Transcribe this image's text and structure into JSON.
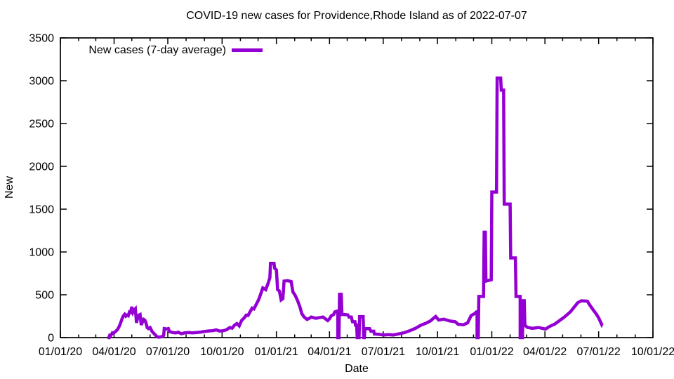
{
  "colors": {
    "line": "#9400d3",
    "axis": "#000000",
    "background": "#ffffff",
    "text": "#000000"
  },
  "chart_data": {
    "type": "line",
    "style": "step-like 7-day average curve",
    "title": "COVID-19 new cases for Providence,Rhode Island as of 2022-07-07",
    "xlabel": "Date",
    "ylabel": "New",
    "grid": "off",
    "legend": {
      "label": "New cases (7-day average)",
      "position": "top-left-inside",
      "sample_color": "#9400d3"
    },
    "x_axis": {
      "unit": "days since 2020-01-01",
      "range": [
        0,
        1004
      ],
      "major_ticks": [
        {
          "day": 0,
          "label": "01/01/20"
        },
        {
          "day": 91,
          "label": "04/01/20"
        },
        {
          "day": 182,
          "label": "07/01/20"
        },
        {
          "day": 274,
          "label": "10/01/20"
        },
        {
          "day": 366,
          "label": "01/01/21"
        },
        {
          "day": 456,
          "label": "04/01/21"
        },
        {
          "day": 547,
          "label": "07/01/21"
        },
        {
          "day": 639,
          "label": "10/01/21"
        },
        {
          "day": 731,
          "label": "01/01/22"
        },
        {
          "day": 821,
          "label": "04/01/22"
        },
        {
          "day": 912,
          "label": "07/01/22"
        },
        {
          "day": 1004,
          "label": "10/01/22"
        }
      ],
      "minor_tick_days": [
        31,
        60,
        121,
        152,
        213,
        244,
        305,
        335,
        397,
        425,
        486,
        517,
        578,
        609,
        670,
        700,
        762,
        790,
        851,
        882,
        943,
        974
      ]
    },
    "y_axis": {
      "range": [
        0,
        3500
      ],
      "tick_interval": 500,
      "tick_values": [
        0,
        500,
        1000,
        1500,
        2000,
        2500,
        3000,
        3500
      ]
    },
    "series": [
      {
        "name": "New cases (7-day average)",
        "color": "#9400d3",
        "points": [
          [
            80,
            2
          ],
          [
            82,
            0
          ],
          [
            83,
            18
          ],
          [
            84,
            10
          ],
          [
            86,
            30
          ],
          [
            88,
            55
          ],
          [
            90,
            50
          ],
          [
            92,
            62
          ],
          [
            94,
            75
          ],
          [
            97,
            95
          ],
          [
            100,
            135
          ],
          [
            103,
            190
          ],
          [
            105,
            230
          ],
          [
            107,
            255
          ],
          [
            109,
            272
          ],
          [
            111,
            250
          ],
          [
            113,
            262
          ],
          [
            115,
            255
          ],
          [
            117,
            300
          ],
          [
            119,
            295
          ],
          [
            121,
            360
          ],
          [
            123,
            295
          ],
          [
            125,
            320
          ],
          [
            127,
            335
          ],
          [
            129,
            172
          ],
          [
            131,
            230
          ],
          [
            133,
            262
          ],
          [
            135,
            270
          ],
          [
            137,
            147
          ],
          [
            139,
            180
          ],
          [
            141,
            213
          ],
          [
            143,
            205
          ],
          [
            145,
            172
          ],
          [
            147,
            117
          ],
          [
            149,
            106
          ],
          [
            152,
            117
          ],
          [
            155,
            75
          ],
          [
            158,
            52
          ],
          [
            161,
            30
          ],
          [
            164,
            8
          ],
          [
            167,
            5
          ],
          [
            170,
            8
          ],
          [
            173,
            12
          ],
          [
            175,
            25
          ],
          [
            176,
            106
          ],
          [
            180,
            100
          ],
          [
            183,
            105
          ],
          [
            185,
            70
          ],
          [
            190,
            60
          ],
          [
            195,
            55
          ],
          [
            200,
            62
          ],
          [
            205,
            45
          ],
          [
            210,
            55
          ],
          [
            217,
            60
          ],
          [
            224,
            55
          ],
          [
            231,
            60
          ],
          [
            238,
            65
          ],
          [
            245,
            72
          ],
          [
            252,
            78
          ],
          [
            258,
            80
          ],
          [
            264,
            90
          ],
          [
            270,
            76
          ],
          [
            276,
            80
          ],
          [
            281,
            90
          ],
          [
            287,
            117
          ],
          [
            291,
            110
          ],
          [
            295,
            145
          ],
          [
            299,
            164
          ],
          [
            303,
            137
          ],
          [
            307,
            199
          ],
          [
            311,
            226
          ],
          [
            315,
            262
          ],
          [
            318,
            258
          ],
          [
            322,
            308
          ],
          [
            325,
            344
          ],
          [
            328,
            335
          ],
          [
            332,
            390
          ],
          [
            336,
            444
          ],
          [
            340,
            520
          ],
          [
            343,
            580
          ],
          [
            348,
            560
          ],
          [
            352,
            635
          ],
          [
            355,
            700
          ],
          [
            356,
            867
          ],
          [
            362,
            867
          ],
          [
            363,
            810
          ],
          [
            366,
            790
          ],
          [
            368,
            560
          ],
          [
            371,
            545
          ],
          [
            374,
            440
          ],
          [
            377,
            455
          ],
          [
            379,
            660
          ],
          [
            385,
            665
          ],
          [
            391,
            655
          ],
          [
            394,
            534
          ],
          [
            398,
            490
          ],
          [
            402,
            430
          ],
          [
            406,
            355
          ],
          [
            409,
            280
          ],
          [
            413,
            240
          ],
          [
            418,
            212
          ],
          [
            422,
            225
          ],
          [
            425,
            240
          ],
          [
            429,
            232
          ],
          [
            433,
            226
          ],
          [
            438,
            232
          ],
          [
            445,
            240
          ],
          [
            449,
            220
          ],
          [
            453,
            198
          ],
          [
            456,
            220
          ],
          [
            459,
            255
          ],
          [
            463,
            270
          ],
          [
            465,
            300
          ],
          [
            469,
            310
          ],
          [
            470,
            310
          ],
          [
            470,
            0
          ],
          [
            472,
            0
          ],
          [
            473,
            505
          ],
          [
            476,
            505
          ],
          [
            477,
            270
          ],
          [
            482,
            270
          ],
          [
            487,
            265
          ],
          [
            489,
            240
          ],
          [
            493,
            240
          ],
          [
            495,
            185
          ],
          [
            499,
            185
          ],
          [
            500,
            145
          ],
          [
            502,
            145
          ],
          [
            503,
            0
          ],
          [
            506,
            0
          ],
          [
            507,
            245
          ],
          [
            513,
            245
          ],
          [
            514,
            0
          ],
          [
            515,
            0
          ],
          [
            516,
            105
          ],
          [
            524,
            105
          ],
          [
            526,
            75
          ],
          [
            531,
            75
          ],
          [
            532,
            42
          ],
          [
            540,
            38
          ],
          [
            548,
            30
          ],
          [
            556,
            35
          ],
          [
            564,
            30
          ],
          [
            572,
            42
          ],
          [
            578,
            50
          ],
          [
            585,
            62
          ],
          [
            594,
            85
          ],
          [
            602,
            110
          ],
          [
            611,
            145
          ],
          [
            620,
            170
          ],
          [
            627,
            195
          ],
          [
            633,
            230
          ],
          [
            636,
            247
          ],
          [
            641,
            205
          ],
          [
            650,
            215
          ],
          [
            659,
            195
          ],
          [
            669,
            185
          ],
          [
            674,
            155
          ],
          [
            683,
            150
          ],
          [
            690,
            172
          ],
          [
            696,
            258
          ],
          [
            702,
            280
          ],
          [
            705,
            300
          ],
          [
            706,
            300
          ],
          [
            706,
            0
          ],
          [
            708,
            0
          ],
          [
            709,
            480
          ],
          [
            717,
            480
          ],
          [
            718,
            1230
          ],
          [
            720,
            1230
          ],
          [
            721,
            660
          ],
          [
            730,
            675
          ],
          [
            731,
            1700
          ],
          [
            739,
            1700
          ],
          [
            740,
            3030
          ],
          [
            746,
            3030
          ],
          [
            747,
            2890
          ],
          [
            751,
            2890
          ],
          [
            752,
            1560
          ],
          [
            762,
            1560
          ],
          [
            763,
            930
          ],
          [
            771,
            930
          ],
          [
            772,
            480
          ],
          [
            779,
            480
          ],
          [
            779,
            0
          ],
          [
            783,
            0
          ],
          [
            784,
            430
          ],
          [
            786,
            430
          ],
          [
            787,
            145
          ],
          [
            791,
            120
          ],
          [
            800,
            108
          ],
          [
            810,
            118
          ],
          [
            822,
            100
          ],
          [
            829,
            130
          ],
          [
            838,
            160
          ],
          [
            846,
            200
          ],
          [
            853,
            235
          ],
          [
            864,
            300
          ],
          [
            871,
            360
          ],
          [
            877,
            410
          ],
          [
            883,
            430
          ],
          [
            893,
            425
          ],
          [
            896,
            390
          ],
          [
            902,
            330
          ],
          [
            908,
            275
          ],
          [
            912,
            230
          ],
          [
            915,
            185
          ],
          [
            917,
            155
          ],
          [
            918,
            170
          ]
        ]
      }
    ]
  }
}
